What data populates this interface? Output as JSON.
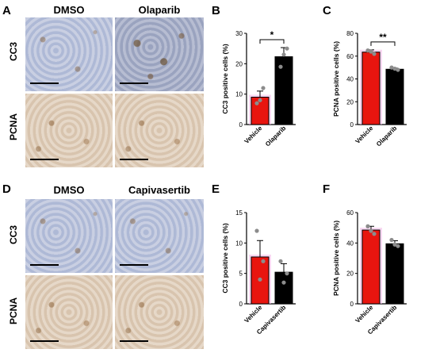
{
  "panels": {
    "A": {
      "letter": "A",
      "col1": "DMSO",
      "col2": "Olaparib",
      "row1": "CC3",
      "row2": "PCNA"
    },
    "D": {
      "letter": "D",
      "col1": "DMSO",
      "col2": "Capivasertib",
      "row1": "CC3",
      "row2": "PCNA"
    },
    "B": {
      "letter": "B"
    },
    "C": {
      "letter": "C"
    },
    "E": {
      "letter": "E"
    },
    "F": {
      "letter": "F"
    }
  },
  "colors": {
    "vehicle": "#e8150f",
    "treatment": "#000000",
    "dot": "#8c8c8c",
    "halo": "#f3b8e8"
  },
  "chart_data": [
    {
      "id": "B",
      "type": "bar",
      "categories": [
        "Vehicle",
        "Olaparib"
      ],
      "values": [
        9,
        22.3
      ],
      "errors": [
        2,
        3
      ],
      "points": [
        [
          7,
          12,
          8
        ],
        [
          19,
          25,
          23
        ]
      ],
      "ylabel": "CC3 positive cells (%)",
      "ylim": [
        0,
        30
      ],
      "ticks": [
        0,
        10,
        20,
        30
      ],
      "sig": "*"
    },
    {
      "id": "C",
      "type": "bar",
      "categories": [
        "Vehicle",
        "Olaparib"
      ],
      "values": [
        63.5,
        48.5
      ],
      "errors": [
        2,
        1
      ],
      "points": [
        [
          65,
          62,
          64
        ],
        [
          50,
          48,
          49
        ]
      ],
      "ylabel": "PCNA positive cells (%)",
      "ylim": [
        0,
        80
      ],
      "ticks": [
        0,
        20,
        40,
        60,
        80
      ],
      "sig": "**"
    },
    {
      "id": "E",
      "type": "bar",
      "categories": [
        "Vehicle",
        "Capivasertib"
      ],
      "values": [
        7.7,
        5.2
      ],
      "errors": [
        2.7,
        1.4
      ],
      "points": [
        [
          12,
          7,
          4
        ],
        [
          7,
          5,
          3.5
        ]
      ],
      "ylabel": "CC3 positive cells (%)",
      "ylim": [
        0,
        15
      ],
      "ticks": [
        0,
        5,
        10,
        15
      ],
      "sig": ""
    },
    {
      "id": "F",
      "type": "bar",
      "categories": [
        "Vehicle",
        "Capivasertib"
      ],
      "values": [
        48.5,
        39.5
      ],
      "errors": [
        2.5,
        2
      ],
      "points": [
        [
          51,
          46,
          48
        ],
        [
          42,
          38,
          39
        ]
      ],
      "ylabel": "PCNA positive cells (%)",
      "ylim": [
        0,
        60
      ],
      "ticks": [
        0,
        20,
        40,
        60
      ],
      "sig": ""
    }
  ]
}
